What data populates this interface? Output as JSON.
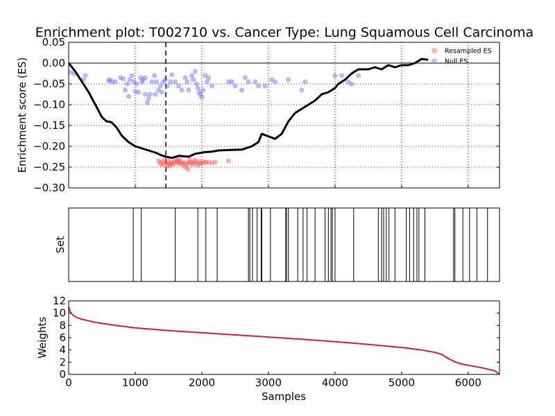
{
  "chart_data": [
    {
      "type": "line",
      "title": "Enrichment plot: T002710 vs. Cancer Type: Lung Squamous Cell Carcinoma",
      "ylabel": "Enrichment score (ES)",
      "xlim": [
        0,
        6470
      ],
      "ylim": [
        -0.3,
        0.05
      ],
      "yticks": [
        "0.05",
        "0.00",
        "−0.05",
        "−0.10",
        "−0.15",
        "−0.20",
        "−0.25",
        "−0.30"
      ],
      "ytick_values": [
        0.05,
        0.0,
        -0.05,
        -0.1,
        -0.15,
        -0.2,
        -0.25,
        -0.3
      ],
      "grid": true,
      "legend_position": "top-right",
      "legend": [
        "Resampled ES",
        "Null ES"
      ],
      "colors": {
        "es_curve": "#000000",
        "resampled": "#ff4d4d",
        "null": "#6666ff",
        "vline": "#000000"
      },
      "vline_x": 1460,
      "es_curve": [
        [
          0,
          0.0
        ],
        [
          100,
          -0.02
        ],
        [
          200,
          -0.045
        ],
        [
          300,
          -0.07
        ],
        [
          400,
          -0.1
        ],
        [
          500,
          -0.13
        ],
        [
          570,
          -0.14
        ],
        [
          640,
          -0.142
        ],
        [
          720,
          -0.155
        ],
        [
          800,
          -0.175
        ],
        [
          900,
          -0.19
        ],
        [
          1000,
          -0.2
        ],
        [
          1100,
          -0.205
        ],
        [
          1200,
          -0.21
        ],
        [
          1300,
          -0.215
        ],
        [
          1400,
          -0.222
        ],
        [
          1460,
          -0.225
        ],
        [
          1550,
          -0.228
        ],
        [
          1650,
          -0.223
        ],
        [
          1800,
          -0.225
        ],
        [
          1900,
          -0.218
        ],
        [
          2050,
          -0.214
        ],
        [
          2150,
          -0.213
        ],
        [
          2250,
          -0.21
        ],
        [
          2400,
          -0.209
        ],
        [
          2600,
          -0.208
        ],
        [
          2750,
          -0.2
        ],
        [
          2850,
          -0.19
        ],
        [
          2900,
          -0.17
        ],
        [
          2980,
          -0.175
        ],
        [
          3100,
          -0.182
        ],
        [
          3200,
          -0.17
        ],
        [
          3300,
          -0.14
        ],
        [
          3400,
          -0.12
        ],
        [
          3500,
          -0.11
        ],
        [
          3600,
          -0.1
        ],
        [
          3700,
          -0.09
        ],
        [
          3800,
          -0.075
        ],
        [
          3900,
          -0.07
        ],
        [
          4000,
          -0.06
        ],
        [
          4050,
          -0.05
        ],
        [
          4150,
          -0.04
        ],
        [
          4250,
          -0.025
        ],
        [
          4350,
          -0.015
        ],
        [
          4500,
          -0.015
        ],
        [
          4600,
          -0.01
        ],
        [
          4700,
          -0.015
        ],
        [
          4800,
          -0.005
        ],
        [
          4900,
          -0.01
        ],
        [
          5000,
          -0.005
        ],
        [
          5100,
          -0.005
        ],
        [
          5200,
          0.0
        ],
        [
          5300,
          0.01
        ],
        [
          5400,
          0.008
        ]
      ],
      "resampled_es": [
        [
          1350,
          -0.235
        ],
        [
          1380,
          -0.242
        ],
        [
          1400,
          -0.238
        ],
        [
          1420,
          -0.245
        ],
        [
          1440,
          -0.232
        ],
        [
          1460,
          -0.24
        ],
        [
          1480,
          -0.248
        ],
        [
          1500,
          -0.236
        ],
        [
          1520,
          -0.242
        ],
        [
          1540,
          -0.239
        ],
        [
          1560,
          -0.244
        ],
        [
          1580,
          -0.236
        ],
        [
          1600,
          -0.24
        ],
        [
          1620,
          -0.233
        ],
        [
          1640,
          -0.238
        ],
        [
          1660,
          -0.242
        ],
        [
          1680,
          -0.236
        ],
        [
          1700,
          -0.24
        ],
        [
          1720,
          -0.245
        ],
        [
          1740,
          -0.239
        ],
        [
          1760,
          -0.25
        ],
        [
          1780,
          -0.242
        ],
        [
          1800,
          -0.238
        ],
        [
          1820,
          -0.231
        ],
        [
          1840,
          -0.24
        ],
        [
          1860,
          -0.244
        ],
        [
          1880,
          -0.238
        ],
        [
          1900,
          -0.233
        ],
        [
          1920,
          -0.24
        ],
        [
          1940,
          -0.246
        ],
        [
          1960,
          -0.236
        ],
        [
          1980,
          -0.242
        ],
        [
          2000,
          -0.24
        ],
        [
          2030,
          -0.237
        ],
        [
          2060,
          -0.239
        ],
        [
          2100,
          -0.238
        ],
        [
          2150,
          -0.24
        ],
        [
          2200,
          -0.238
        ],
        [
          2400,
          -0.235
        ],
        [
          1790,
          -0.255
        ],
        [
          1510,
          -0.246
        ],
        [
          1650,
          -0.232
        ]
      ],
      "null_es": [
        [
          30,
          -0.022
        ],
        [
          90,
          -0.025
        ],
        [
          220,
          -0.04
        ],
        [
          250,
          -0.03
        ],
        [
          600,
          -0.042
        ],
        [
          620,
          -0.04
        ],
        [
          650,
          -0.045
        ],
        [
          700,
          -0.045
        ],
        [
          780,
          -0.035
        ],
        [
          820,
          -0.038
        ],
        [
          850,
          -0.065
        ],
        [
          880,
          -0.05
        ],
        [
          900,
          -0.08
        ],
        [
          920,
          -0.04
        ],
        [
          950,
          -0.03
        ],
        [
          980,
          -0.045
        ],
        [
          1000,
          -0.068
        ],
        [
          1020,
          -0.05
        ],
        [
          1050,
          -0.07
        ],
        [
          1080,
          -0.035
        ],
        [
          1100,
          -0.045
        ],
        [
          1120,
          -0.04
        ],
        [
          1150,
          -0.075
        ],
        [
          1180,
          -0.095
        ],
        [
          1200,
          -0.085
        ],
        [
          1220,
          -0.075
        ],
        [
          1250,
          -0.045
        ],
        [
          1290,
          -0.03
        ],
        [
          1300,
          -0.075
        ],
        [
          1320,
          -0.045
        ],
        [
          1350,
          -0.065
        ],
        [
          1380,
          -0.055
        ],
        [
          1400,
          -0.07
        ],
        [
          1420,
          -0.045
        ],
        [
          1450,
          -0.04
        ],
        [
          1480,
          -0.055
        ],
        [
          1530,
          -0.045
        ],
        [
          1550,
          -0.028
        ],
        [
          1600,
          -0.045
        ],
        [
          1650,
          -0.055
        ],
        [
          1700,
          -0.065
        ],
        [
          1750,
          -0.035
        ],
        [
          1780,
          -0.045
        ],
        [
          1800,
          -0.065
        ],
        [
          1850,
          -0.03
        ],
        [
          1870,
          -0.04
        ],
        [
          1900,
          -0.02
        ],
        [
          1920,
          -0.05
        ],
        [
          1940,
          -0.06
        ],
        [
          1960,
          -0.07
        ],
        [
          1980,
          -0.075
        ],
        [
          2000,
          -0.082
        ],
        [
          2020,
          -0.065
        ],
        [
          2050,
          -0.03
        ],
        [
          2080,
          -0.045
        ],
        [
          2100,
          -0.035
        ],
        [
          2150,
          -0.055
        ],
        [
          2400,
          -0.045
        ],
        [
          2450,
          -0.045
        ],
        [
          2500,
          -0.055
        ],
        [
          2600,
          -0.065
        ],
        [
          2650,
          -0.035
        ],
        [
          2700,
          -0.045
        ],
        [
          2800,
          -0.045
        ],
        [
          2850,
          -0.055
        ],
        [
          2950,
          -0.055
        ],
        [
          3050,
          -0.04
        ],
        [
          3100,
          -0.045
        ],
        [
          3300,
          -0.04
        ],
        [
          3500,
          -0.065
        ],
        [
          3550,
          -0.045
        ],
        [
          4000,
          -0.03
        ],
        [
          4100,
          -0.03
        ],
        [
          4200,
          -0.045
        ],
        [
          4350,
          -0.03
        ],
        [
          4250,
          -0.05
        ],
        [
          1150,
          -0.035
        ]
      ]
    },
    {
      "type": "rug",
      "ylabel": "Set",
      "xlim": [
        0,
        6470
      ],
      "set_positions": [
        970,
        1090,
        1600,
        1940,
        2060,
        2230,
        2700,
        2720,
        2760,
        2830,
        2890,
        2900,
        3030,
        3260,
        3270,
        3300,
        3440,
        3520,
        3580,
        3700,
        3850,
        3900,
        3940,
        3960,
        4000,
        4280,
        4650,
        4700,
        4730,
        4770,
        4810,
        4900,
        5070,
        5120,
        5180,
        5230,
        5260,
        5350,
        5780,
        5800,
        5920,
        6020,
        6130,
        6290,
        6470
      ]
    },
    {
      "type": "line",
      "ylabel": "Weights",
      "xlabel": "Samples",
      "xlim": [
        0,
        6470
      ],
      "ylim": [
        0,
        12
      ],
      "xticks": [
        "0",
        "1000",
        "2000",
        "3000",
        "4000",
        "5000",
        "6000"
      ],
      "xtick_values": [
        0,
        1000,
        2000,
        3000,
        4000,
        5000,
        6000
      ],
      "yticks": [
        "0",
        "2",
        "4",
        "6",
        "8",
        "10",
        "12"
      ],
      "ytick_values": [
        0,
        2,
        4,
        6,
        8,
        10,
        12
      ],
      "colors": {
        "weights_line": "#d41a3a"
      },
      "weights_curve": [
        [
          0,
          11.0
        ],
        [
          20,
          10.3
        ],
        [
          60,
          9.7
        ],
        [
          120,
          9.3
        ],
        [
          200,
          9.0
        ],
        [
          400,
          8.5
        ],
        [
          700,
          8.0
        ],
        [
          1000,
          7.6
        ],
        [
          1500,
          7.15
        ],
        [
          2000,
          6.8
        ],
        [
          2500,
          6.45
        ],
        [
          3000,
          6.1
        ],
        [
          3500,
          5.75
        ],
        [
          4000,
          5.35
        ],
        [
          4500,
          4.9
        ],
        [
          5000,
          4.4
        ],
        [
          5300,
          4.0
        ],
        [
          5500,
          3.6
        ],
        [
          5600,
          3.3
        ],
        [
          5700,
          2.6
        ],
        [
          5800,
          2.05
        ],
        [
          5900,
          1.7
        ],
        [
          6000,
          1.5
        ],
        [
          6200,
          1.1
        ],
        [
          6400,
          0.6
        ],
        [
          6470,
          0.0
        ]
      ]
    }
  ]
}
